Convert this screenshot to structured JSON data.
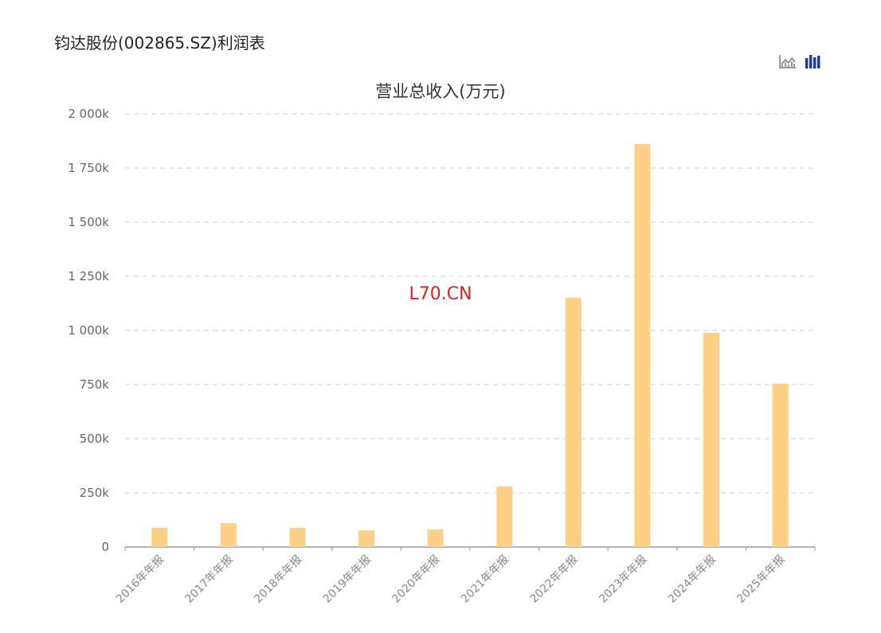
{
  "page": {
    "title": "钧达股份(002865.SZ)利润表",
    "watermark": "L70.CN"
  },
  "toolbar": {
    "icons": [
      "line-chart-icon",
      "bar-chart-icon"
    ],
    "active": "bar-chart-icon",
    "active_color": "#1f3fa8",
    "inactive_color": "#777777"
  },
  "chart_data": {
    "type": "bar",
    "title": "营业总收入(万元)",
    "categories": [
      "2016年年报",
      "2017年年报",
      "2018年年报",
      "2019年年报",
      "2020年年报",
      "2021年年报",
      "2022年年报",
      "2023年年报",
      "2024年年报",
      "2025年年报"
    ],
    "values": [
      88,
      110,
      88,
      77,
      81,
      279,
      1151,
      1860,
      989,
      754
    ],
    "value_unit": "k",
    "ylim": [
      0,
      2000
    ],
    "yticks": [
      0,
      250,
      500,
      750,
      1000,
      1250,
      1500,
      1750,
      2000
    ],
    "ytick_labels": [
      "0",
      "250k",
      "500k",
      "750k",
      "1 000k",
      "1 250k",
      "1 500k",
      "1 750k",
      "2 000k"
    ],
    "grid": true,
    "bar_color": "#fdd086"
  }
}
